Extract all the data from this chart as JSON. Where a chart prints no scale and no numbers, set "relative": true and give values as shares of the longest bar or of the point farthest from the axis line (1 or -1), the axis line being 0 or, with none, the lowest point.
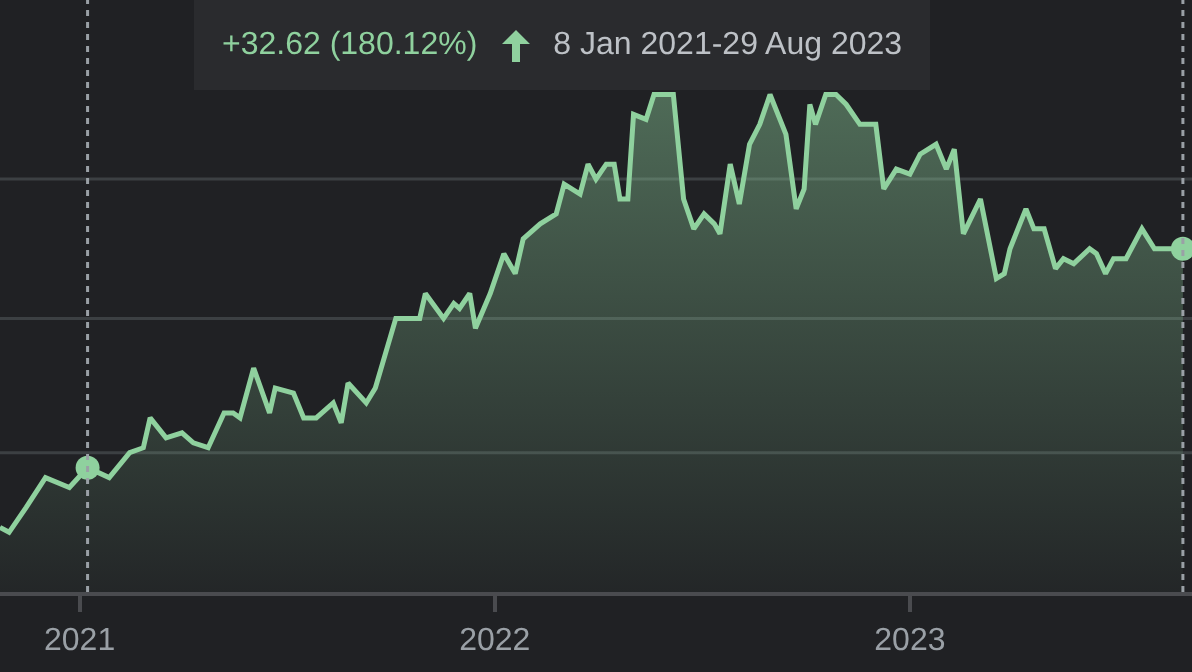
{
  "chart_data": {
    "type": "area",
    "relative": true,
    "xlim": [
      "2020-10-23",
      "2023-09-06"
    ],
    "xticks": [
      {
        "value": "2021-01-01",
        "label": "2021"
      },
      {
        "value": "2022-01-01",
        "label": "2022"
      },
      {
        "value": "2023-01-01",
        "label": "2023"
      }
    ],
    "line_style": "solid",
    "annotations": [
      "+32.62 (180.12%)",
      "8 Jan 2021-29 Aug 2023"
    ],
    "ref_lines": [
      {
        "axis": "y",
        "value": 0.28,
        "line_style": "solid",
        "color": "#3c4043"
      },
      {
        "axis": "y",
        "value": 0.55,
        "line_style": "solid",
        "color": "#3c4043"
      },
      {
        "axis": "y",
        "value": 0.83,
        "line_style": "solid",
        "color": "#3c4043"
      },
      {
        "axis": "x",
        "value": "2021-01-08",
        "line_style": "dotted",
        "color": "#9aa0a6"
      },
      {
        "axis": "x",
        "value": "2023-08-29",
        "line_style": "dotted",
        "color": "#9aa0a6"
      }
    ],
    "series": [
      {
        "color": "#8fd19e",
        "x": [
          "2020-10-23",
          "2020-10-31",
          "2020-11-15",
          "2020-12-02",
          "2020-12-23",
          "2021-01-08",
          "2021-01-27",
          "2021-02-14",
          "2021-02-26",
          "2021-03-04",
          "2021-03-18",
          "2021-04-01",
          "2021-04-11",
          "2021-04-24",
          "2021-05-08",
          "2021-05-16",
          "2021-05-22",
          "2021-06-03",
          "2021-06-17",
          "2021-06-22",
          "2021-07-08",
          "2021-07-17",
          "2021-07-28",
          "2021-08-12",
          "2021-08-19",
          "2021-08-25",
          "2021-09-10",
          "2021-09-18",
          "2021-10-06",
          "2021-10-27",
          "2021-11-01",
          "2021-11-17",
          "2021-11-26",
          "2021-12-01",
          "2021-12-10",
          "2021-12-15",
          "2021-12-28",
          "2022-01-09",
          "2022-01-19",
          "2022-01-26",
          "2022-02-10",
          "2022-02-24",
          "2022-03-03",
          "2022-03-17",
          "2022-03-24",
          "2022-03-31",
          "2022-04-09",
          "2022-04-16",
          "2022-04-21",
          "2022-04-28",
          "2022-05-03",
          "2022-05-14",
          "2022-05-21",
          "2022-05-26",
          "2022-06-07",
          "2022-06-16",
          "2022-06-25",
          "2022-07-04",
          "2022-07-13",
          "2022-07-18",
          "2022-07-27",
          "2022-08-04",
          "2022-08-13",
          "2022-08-22",
          "2022-08-31",
          "2022-09-14",
          "2022-09-23",
          "2022-09-30",
          "2022-10-05",
          "2022-10-10",
          "2022-10-19",
          "2022-10-28",
          "2022-11-06",
          "2022-11-18",
          "2022-12-02",
          "2022-12-09",
          "2022-12-20",
          "2023-01-01",
          "2023-01-10",
          "2023-01-24",
          "2023-02-02",
          "2023-02-09",
          "2023-02-17",
          "2023-03-04",
          "2023-03-18",
          "2023-03-25",
          "2023-03-30",
          "2023-04-13",
          "2023-04-20",
          "2023-04-29",
          "2023-05-09",
          "2023-05-16",
          "2023-05-25",
          "2023-06-08",
          "2023-06-14",
          "2023-06-22",
          "2023-06-29",
          "2023-07-10",
          "2023-07-24",
          "2023-08-04",
          "2023-08-17",
          "2023-08-29"
        ],
        "values": [
          0.13,
          0.12,
          0.17,
          0.23,
          0.21,
          0.25,
          0.23,
          0.28,
          0.29,
          0.35,
          0.31,
          0.32,
          0.3,
          0.29,
          0.36,
          0.36,
          0.35,
          0.45,
          0.36,
          0.41,
          0.4,
          0.35,
          0.35,
          0.38,
          0.34,
          0.42,
          0.38,
          0.41,
          0.55,
          0.55,
          0.6,
          0.55,
          0.58,
          0.57,
          0.6,
          0.53,
          0.6,
          0.68,
          0.64,
          0.71,
          0.74,
          0.76,
          0.82,
          0.8,
          0.86,
          0.83,
          0.86,
          0.86,
          0.79,
          0.79,
          0.96,
          0.95,
          1.0,
          1.0,
          1.0,
          0.79,
          0.73,
          0.76,
          0.74,
          0.72,
          0.86,
          0.78,
          0.9,
          0.94,
          1.0,
          0.92,
          0.77,
          0.81,
          0.98,
          0.94,
          1.0,
          1.0,
          0.98,
          0.94,
          0.94,
          0.81,
          0.85,
          0.84,
          0.88,
          0.9,
          0.85,
          0.89,
          0.72,
          0.79,
          0.63,
          0.64,
          0.69,
          0.77,
          0.73,
          0.73,
          0.65,
          0.67,
          0.66,
          0.69,
          0.68,
          0.64,
          0.67,
          0.67,
          0.73,
          0.69,
          0.69,
          0.69
        ]
      },
      {
        "type": "scatter",
        "color": "#8fd19e",
        "marker": "circle",
        "x": [
          "2021-01-08",
          "2023-08-29"
        ],
        "values": [
          0.25,
          0.69
        ]
      }
    ]
  }
}
